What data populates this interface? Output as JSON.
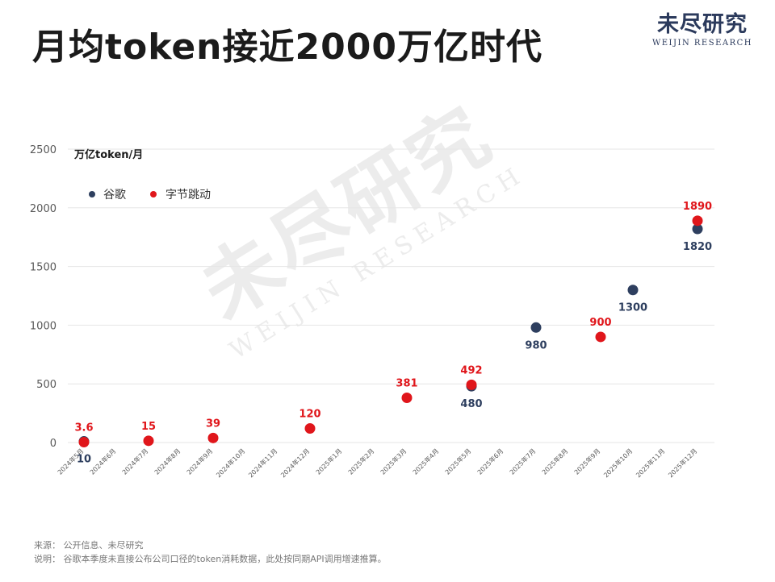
{
  "title": "月均token接近2000万亿时代",
  "logo": {
    "cn": "未尽研究",
    "en": "WEIJIN RESEARCH"
  },
  "colors": {
    "google": "#2e3f5f",
    "bytedance": "#e0161b",
    "grid": "#e6e6e6"
  },
  "chart_data": {
    "type": "scatter",
    "ylabel": "万亿token/月",
    "ylim": [
      0,
      2500
    ],
    "yticks": [
      0,
      500,
      1000,
      1500,
      2000,
      2500
    ],
    "grid": true,
    "legend_position": "top-left",
    "categories": [
      "2024年5月",
      "2024年6月",
      "2024年7月",
      "2024年8月",
      "2024年9月",
      "2024年10月",
      "2024年11月",
      "2024年12月",
      "2025年1月",
      "2025年2月",
      "2025年3月",
      "2025年4月",
      "2025年5月",
      "2025年6月",
      "2025年7月",
      "2025年8月",
      "2025年9月",
      "2025年10月",
      "2025年11月",
      "2025年12月"
    ],
    "series": [
      {
        "name": "谷歌",
        "color": "#2e3f5f",
        "label_position": "below",
        "points": [
          {
            "x": "2024年5月",
            "y": 10
          },
          {
            "x": "2025年5月",
            "y": 480
          },
          {
            "x": "2025年7月",
            "y": 980
          },
          {
            "x": "2025年10月",
            "y": 1300
          },
          {
            "x": "2025年12月",
            "y": 1820
          }
        ]
      },
      {
        "name": "字节跳动",
        "color": "#e0161b",
        "label_position": "above",
        "points": [
          {
            "x": "2024年5月",
            "y": 3.6
          },
          {
            "x": "2024年7月",
            "y": 15
          },
          {
            "x": "2024年9月",
            "y": 39
          },
          {
            "x": "2024年12月",
            "y": 120
          },
          {
            "x": "2025年3月",
            "y": 381
          },
          {
            "x": "2025年5月",
            "y": 492
          },
          {
            "x": "2025年9月",
            "y": 900
          },
          {
            "x": "2025年12月",
            "y": 1890
          }
        ]
      }
    ]
  },
  "footer": {
    "source": "来源：  公开信息、未尽研究",
    "note": "说明：  谷歌本季度未直接公布公司口径的token消耗数据，此处按同期API调用增速推算。"
  }
}
